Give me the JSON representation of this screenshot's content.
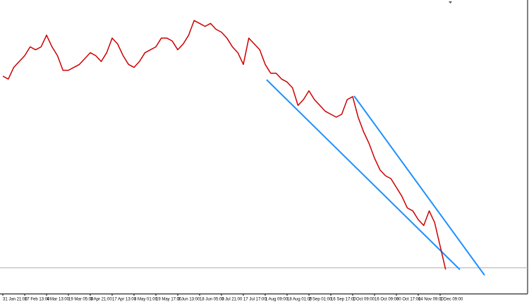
{
  "chart_data": {
    "type": "line",
    "categories": [
      "31 Jan 21:00",
      null,
      null,
      null,
      "17 Feb 13:00",
      null,
      null,
      null,
      "4 Mar 13:00",
      null,
      null,
      null,
      "19 Mar 05:00",
      null,
      null,
      null,
      "3 Apr 21:00",
      null,
      null,
      null,
      "17 Apr 13:00",
      null,
      null,
      null,
      "3 May 01:00",
      null,
      null,
      null,
      "19 May 17:00",
      null,
      null,
      null,
      "3 Jun 13:00",
      null,
      null,
      null,
      "18 Jun 05:00",
      null,
      null,
      null,
      "3 Jul 21:00",
      null,
      null,
      null,
      "17 Jul 17:00",
      null,
      null,
      null,
      "1 Aug 09:00",
      null,
      null,
      null,
      "18 Aug 01:00",
      null,
      null,
      null,
      "2 Sep 01:00",
      null,
      null,
      null,
      "16 Sep 17:00",
      null,
      null,
      null,
      "1 Oct 09:00",
      null,
      null,
      null,
      "16 Oct 09:00",
      null,
      null,
      null,
      "30 Oct 17:00",
      null,
      null,
      null,
      "14 Nov 09:00",
      null,
      null,
      null,
      "1 Dec 09:00",
      null
    ],
    "values": [
      74,
      73,
      77,
      79,
      81,
      84,
      83,
      84,
      88,
      84,
      81,
      76,
      76,
      77,
      78,
      80,
      82,
      81,
      79,
      82,
      87,
      85,
      81,
      78,
      77,
      79,
      82,
      83,
      84,
      87,
      87,
      86,
      83,
      85,
      88,
      93,
      92,
      91,
      92,
      90,
      89,
      87,
      84,
      82,
      78,
      87,
      85,
      83,
      78,
      75,
      75,
      73,
      72,
      70,
      64,
      66,
      69,
      66,
      64,
      62,
      61,
      60,
      61,
      66,
      67,
      60,
      55,
      51,
      46,
      42,
      40,
      39,
      36,
      33,
      29,
      28,
      25,
      23,
      28,
      24,
      16,
      8
    ],
    "color": "#cc0000",
    "ylim": [
      0,
      100
    ]
  }
}
